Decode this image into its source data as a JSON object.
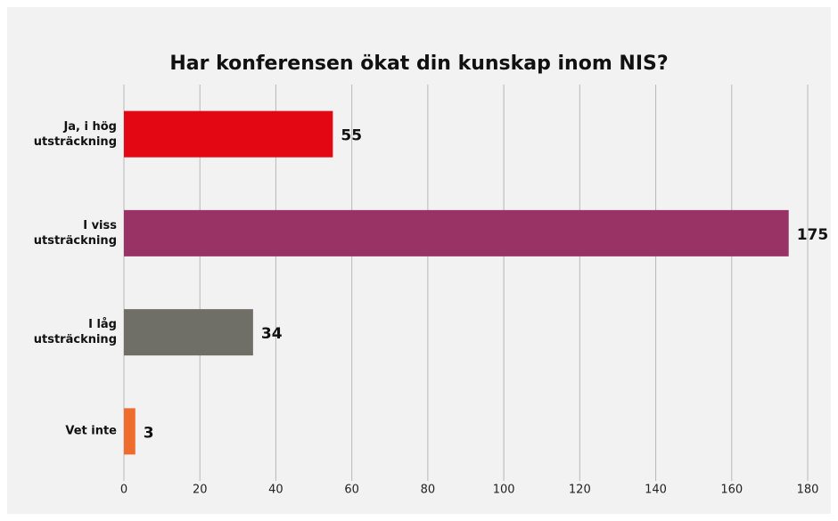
{
  "chart_data": {
    "type": "barh",
    "title": "Har konferensen ökat din kunskap inom NIS?",
    "categories": [
      "Ja, i hög utsträckning",
      "I viss utsträckning",
      "I låg utsträckning",
      "Vet inte"
    ],
    "values": [
      55,
      175,
      34,
      3
    ],
    "colors": [
      "#e30613",
      "#993366",
      "#706f67",
      "#ef6c2f"
    ],
    "xlim": [
      0,
      180
    ],
    "xticks": [
      0,
      20,
      40,
      60,
      80,
      100,
      120,
      140,
      160,
      180
    ],
    "grid": true
  }
}
